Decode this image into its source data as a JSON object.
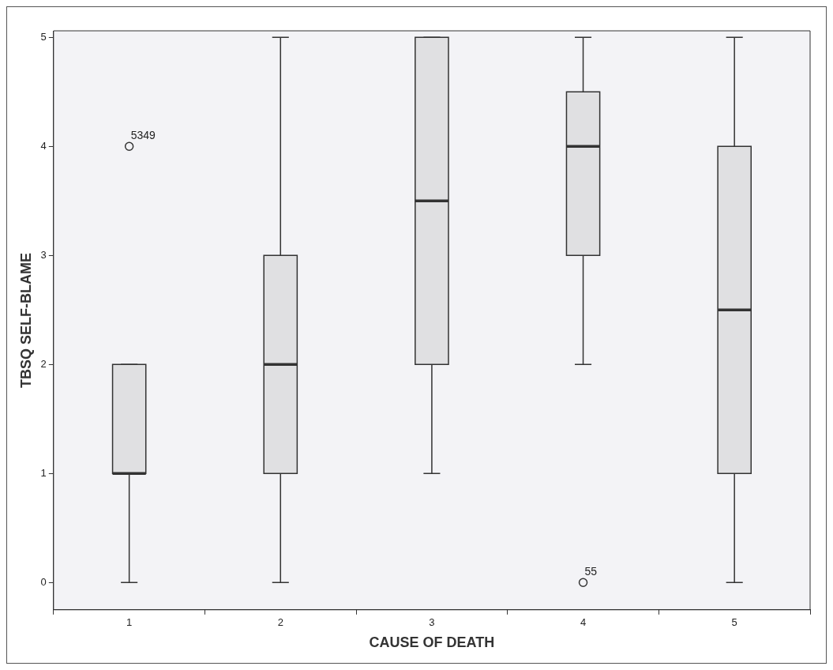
{
  "chart_data": {
    "type": "box",
    "xlabel": "CAUSE OF DEATH",
    "ylabel": "TBSQ SELF-BLAME",
    "categories": [
      "1",
      "2",
      "3",
      "4",
      "5"
    ],
    "color": "#e0e0e2",
    "boxes": [
      {
        "low": 0,
        "q1": 1,
        "median": 1,
        "q3": 2,
        "high": 2,
        "outliers": [
          4
        ]
      },
      {
        "low": 0,
        "q1": 1,
        "median": 2,
        "q3": 3,
        "high": 5
      },
      {
        "low": 1,
        "q1": 2,
        "median": 3.5,
        "q3": 5,
        "high": 5
      },
      {
        "low": 2,
        "q1": 3,
        "median": 4,
        "q3": 4.5,
        "high": 5,
        "outliers": [
          0
        ]
      },
      {
        "low": 0,
        "q1": 1,
        "median": 2.5,
        "q3": 4,
        "high": 5
      }
    ],
    "ylim": [
      -0.25,
      5.06
    ],
    "yticks": [
      0,
      1,
      2,
      3,
      4,
      5
    ],
    "annotations": [
      "5349",
      "55"
    ]
  }
}
